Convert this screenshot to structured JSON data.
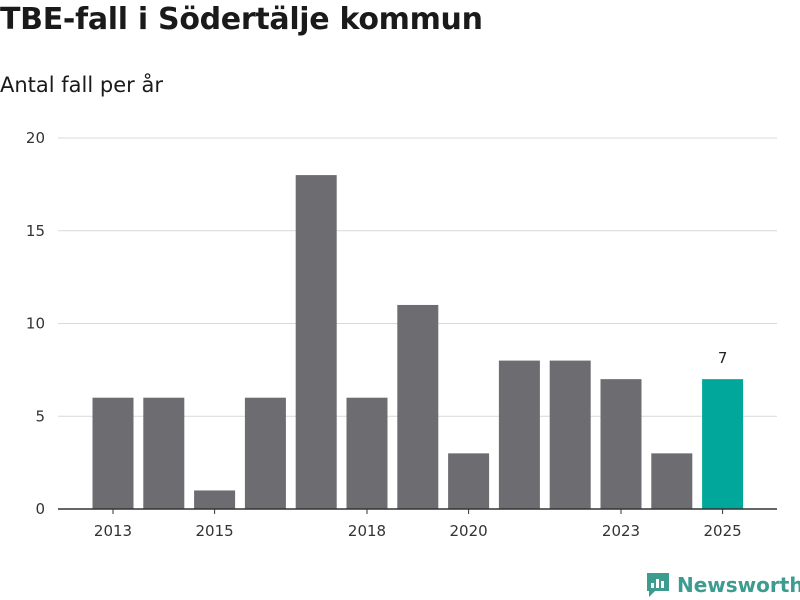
{
  "title": "TBE-fall i Södertälje kommun",
  "subtitle": "Antal fall per år",
  "brand": "Newsworthy",
  "colors": {
    "bar": "#6d6c71",
    "highlight": "#00a79a",
    "grid": "#d9d9d9",
    "axis": "#333333",
    "brand": "#3b9c8f"
  },
  "chart_data": {
    "type": "bar",
    "title": "TBE-fall i Södertälje kommun",
    "subtitle": "Antal fall per år",
    "xlabel": "",
    "ylabel": "",
    "categories": [
      "2013",
      "2014",
      "2015",
      "2016",
      "2017",
      "2018",
      "2019",
      "2020",
      "2021",
      "2022",
      "2023",
      "2024",
      "2025"
    ],
    "values": [
      6,
      6,
      1,
      6,
      18,
      6,
      11,
      3,
      8,
      8,
      7,
      3,
      7
    ],
    "ylim": [
      0,
      20
    ],
    "yticks": [
      0,
      5,
      10,
      15,
      20
    ],
    "xtick_labels": [
      "2013",
      "2015",
      "2018",
      "2020",
      "2023",
      "2025"
    ],
    "highlight_category": "2025",
    "annotations": [
      {
        "category": "2025",
        "text": "7"
      }
    ],
    "grid": true
  }
}
